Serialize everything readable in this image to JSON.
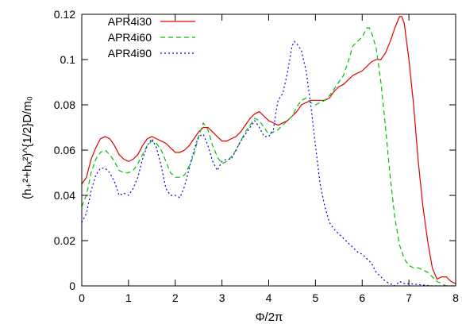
{
  "chart_data": {
    "type": "line",
    "title": "",
    "xlabel": "Φ/2π",
    "ylabel": "(h₊²+hₓ²)^{1/2}D/m₀",
    "xlim": [
      0,
      8
    ],
    "ylim": [
      0,
      0.12
    ],
    "x_ticks": [
      "0",
      "1",
      "2",
      "3",
      "4",
      "5",
      "6",
      "7",
      "8"
    ],
    "y_ticks": [
      "0",
      "0.02",
      "0.04",
      "0.06",
      "0.08",
      "0.1",
      "0.12"
    ],
    "grid": false,
    "legend_position": "top-left",
    "series": [
      {
        "name": "APR4i30",
        "color": "#e00000",
        "dash": "solid",
        "points": [
          [
            0.0,
            0.045
          ],
          [
            0.1,
            0.048
          ],
          [
            0.2,
            0.056
          ],
          [
            0.3,
            0.061
          ],
          [
            0.4,
            0.065
          ],
          [
            0.5,
            0.066
          ],
          [
            0.6,
            0.065
          ],
          [
            0.7,
            0.062
          ],
          [
            0.8,
            0.058
          ],
          [
            0.9,
            0.056
          ],
          [
            1.0,
            0.055
          ],
          [
            1.1,
            0.056
          ],
          [
            1.2,
            0.058
          ],
          [
            1.3,
            0.062
          ],
          [
            1.4,
            0.065
          ],
          [
            1.5,
            0.066
          ],
          [
            1.6,
            0.065
          ],
          [
            1.7,
            0.064
          ],
          [
            1.8,
            0.063
          ],
          [
            1.9,
            0.061
          ],
          [
            2.0,
            0.059
          ],
          [
            2.1,
            0.059
          ],
          [
            2.2,
            0.06
          ],
          [
            2.3,
            0.062
          ],
          [
            2.4,
            0.065
          ],
          [
            2.5,
            0.068
          ],
          [
            2.6,
            0.07
          ],
          [
            2.7,
            0.07
          ],
          [
            2.8,
            0.068
          ],
          [
            2.9,
            0.066
          ],
          [
            3.0,
            0.064
          ],
          [
            3.1,
            0.064
          ],
          [
            3.2,
            0.065
          ],
          [
            3.3,
            0.066
          ],
          [
            3.4,
            0.068
          ],
          [
            3.5,
            0.071
          ],
          [
            3.6,
            0.074
          ],
          [
            3.7,
            0.076
          ],
          [
            3.8,
            0.077
          ],
          [
            3.9,
            0.075
          ],
          [
            4.0,
            0.073
          ],
          [
            4.1,
            0.072
          ],
          [
            4.2,
            0.071
          ],
          [
            4.3,
            0.072
          ],
          [
            4.4,
            0.073
          ],
          [
            4.5,
            0.075
          ],
          [
            4.6,
            0.077
          ],
          [
            4.7,
            0.08
          ],
          [
            4.8,
            0.081
          ],
          [
            4.9,
            0.082
          ],
          [
            5.0,
            0.082
          ],
          [
            5.1,
            0.082
          ],
          [
            5.2,
            0.082
          ],
          [
            5.3,
            0.083
          ],
          [
            5.4,
            0.086
          ],
          [
            5.5,
            0.088
          ],
          [
            5.6,
            0.089
          ],
          [
            5.7,
            0.091
          ],
          [
            5.8,
            0.093
          ],
          [
            5.9,
            0.094
          ],
          [
            6.0,
            0.095
          ],
          [
            6.1,
            0.097
          ],
          [
            6.2,
            0.099
          ],
          [
            6.3,
            0.1
          ],
          [
            6.4,
            0.1
          ],
          [
            6.5,
            0.103
          ],
          [
            6.6,
            0.108
          ],
          [
            6.7,
            0.114
          ],
          [
            6.8,
            0.119
          ],
          [
            6.85,
            0.119
          ],
          [
            6.9,
            0.116
          ],
          [
            7.0,
            0.1
          ],
          [
            7.1,
            0.08
          ],
          [
            7.2,
            0.055
          ],
          [
            7.3,
            0.035
          ],
          [
            7.4,
            0.02
          ],
          [
            7.5,
            0.008
          ],
          [
            7.6,
            0.003
          ],
          [
            7.7,
            0.004
          ],
          [
            7.8,
            0.004
          ],
          [
            7.9,
            0.002
          ],
          [
            8.0,
            0.001
          ]
        ]
      },
      {
        "name": "APR4i60",
        "color": "#00c000",
        "dash": "6,4",
        "points": [
          [
            0.0,
            0.035
          ],
          [
            0.1,
            0.04
          ],
          [
            0.2,
            0.05
          ],
          [
            0.3,
            0.056
          ],
          [
            0.4,
            0.059
          ],
          [
            0.5,
            0.06
          ],
          [
            0.6,
            0.058
          ],
          [
            0.7,
            0.055
          ],
          [
            0.8,
            0.051
          ],
          [
            0.9,
            0.05
          ],
          [
            1.0,
            0.05
          ],
          [
            1.1,
            0.051
          ],
          [
            1.2,
            0.054
          ],
          [
            1.3,
            0.058
          ],
          [
            1.4,
            0.062
          ],
          [
            1.5,
            0.064
          ],
          [
            1.6,
            0.063
          ],
          [
            1.7,
            0.06
          ],
          [
            1.8,
            0.055
          ],
          [
            1.9,
            0.05
          ],
          [
            2.0,
            0.048
          ],
          [
            2.1,
            0.048
          ],
          [
            2.2,
            0.049
          ],
          [
            2.3,
            0.053
          ],
          [
            2.4,
            0.058
          ],
          [
            2.5,
            0.066
          ],
          [
            2.6,
            0.072
          ],
          [
            2.7,
            0.069
          ],
          [
            2.8,
            0.062
          ],
          [
            2.9,
            0.057
          ],
          [
            3.0,
            0.054
          ],
          [
            3.1,
            0.055
          ],
          [
            3.2,
            0.057
          ],
          [
            3.3,
            0.06
          ],
          [
            3.4,
            0.064
          ],
          [
            3.5,
            0.068
          ],
          [
            3.6,
            0.071
          ],
          [
            3.7,
            0.074
          ],
          [
            3.8,
            0.073
          ],
          [
            3.9,
            0.07
          ],
          [
            4.0,
            0.067
          ],
          [
            4.1,
            0.068
          ],
          [
            4.2,
            0.069
          ],
          [
            4.3,
            0.071
          ],
          [
            4.4,
            0.073
          ],
          [
            4.5,
            0.075
          ],
          [
            4.6,
            0.079
          ],
          [
            4.7,
            0.082
          ],
          [
            4.8,
            0.083
          ],
          [
            4.9,
            0.081
          ],
          [
            5.0,
            0.08
          ],
          [
            5.1,
            0.081
          ],
          [
            5.2,
            0.082
          ],
          [
            5.3,
            0.084
          ],
          [
            5.4,
            0.087
          ],
          [
            5.5,
            0.09
          ],
          [
            5.6,
            0.093
          ],
          [
            5.7,
            0.099
          ],
          [
            5.8,
            0.106
          ],
          [
            5.9,
            0.108
          ],
          [
            6.0,
            0.11
          ],
          [
            6.1,
            0.114
          ],
          [
            6.15,
            0.114
          ],
          [
            6.2,
            0.112
          ],
          [
            6.3,
            0.105
          ],
          [
            6.4,
            0.09
          ],
          [
            6.5,
            0.07
          ],
          [
            6.6,
            0.048
          ],
          [
            6.7,
            0.03
          ],
          [
            6.8,
            0.018
          ],
          [
            6.9,
            0.012
          ],
          [
            7.0,
            0.009
          ],
          [
            7.1,
            0.008
          ],
          [
            7.2,
            0.008
          ],
          [
            7.3,
            0.007
          ],
          [
            7.4,
            0.006
          ],
          [
            7.5,
            0.004
          ],
          [
            7.6,
            0.002
          ],
          [
            7.7,
            0.001
          ],
          [
            7.8,
            0.0
          ],
          [
            8.0,
            0.0
          ]
        ]
      },
      {
        "name": "APR4i90",
        "color": "#0000e0",
        "dash": "2,3",
        "points": [
          [
            0.0,
            0.028
          ],
          [
            0.1,
            0.032
          ],
          [
            0.2,
            0.042
          ],
          [
            0.3,
            0.049
          ],
          [
            0.4,
            0.052
          ],
          [
            0.5,
            0.052
          ],
          [
            0.6,
            0.05
          ],
          [
            0.7,
            0.046
          ],
          [
            0.8,
            0.04
          ],
          [
            0.9,
            0.041
          ],
          [
            1.0,
            0.04
          ],
          [
            1.1,
            0.043
          ],
          [
            1.2,
            0.048
          ],
          [
            1.3,
            0.056
          ],
          [
            1.4,
            0.062
          ],
          [
            1.5,
            0.065
          ],
          [
            1.6,
            0.061
          ],
          [
            1.7,
            0.053
          ],
          [
            1.8,
            0.043
          ],
          [
            1.9,
            0.04
          ],
          [
            2.0,
            0.04
          ],
          [
            2.1,
            0.039
          ],
          [
            2.2,
            0.044
          ],
          [
            2.3,
            0.052
          ],
          [
            2.4,
            0.06
          ],
          [
            2.5,
            0.066
          ],
          [
            2.6,
            0.067
          ],
          [
            2.7,
            0.062
          ],
          [
            2.8,
            0.055
          ],
          [
            2.9,
            0.051
          ],
          [
            3.0,
            0.055
          ],
          [
            3.1,
            0.056
          ],
          [
            3.2,
            0.056
          ],
          [
            3.3,
            0.06
          ],
          [
            3.4,
            0.064
          ],
          [
            3.5,
            0.067
          ],
          [
            3.6,
            0.07
          ],
          [
            3.7,
            0.073
          ],
          [
            3.8,
            0.07
          ],
          [
            3.9,
            0.066
          ],
          [
            4.0,
            0.066
          ],
          [
            4.1,
            0.069
          ],
          [
            4.15,
            0.076
          ],
          [
            4.2,
            0.082
          ],
          [
            4.3,
            0.085
          ],
          [
            4.4,
            0.094
          ],
          [
            4.5,
            0.106
          ],
          [
            4.55,
            0.108
          ],
          [
            4.6,
            0.107
          ],
          [
            4.7,
            0.104
          ],
          [
            4.8,
            0.095
          ],
          [
            4.9,
            0.08
          ],
          [
            5.0,
            0.062
          ],
          [
            5.1,
            0.045
          ],
          [
            5.2,
            0.035
          ],
          [
            5.3,
            0.028
          ],
          [
            5.4,
            0.025
          ],
          [
            5.5,
            0.023
          ],
          [
            5.6,
            0.021
          ],
          [
            5.7,
            0.019
          ],
          [
            5.8,
            0.017
          ],
          [
            5.9,
            0.015
          ],
          [
            6.0,
            0.014
          ],
          [
            6.1,
            0.012
          ],
          [
            6.2,
            0.01
          ],
          [
            6.3,
            0.006
          ],
          [
            6.4,
            0.004
          ],
          [
            6.5,
            0.002
          ],
          [
            6.6,
            0.001
          ],
          [
            6.7,
            0.0
          ],
          [
            6.8,
            0.002
          ],
          [
            6.9,
            0.001
          ],
          [
            7.0,
            0.001
          ],
          [
            7.5,
            0.0
          ],
          [
            8.0,
            0.0
          ]
        ]
      }
    ]
  }
}
